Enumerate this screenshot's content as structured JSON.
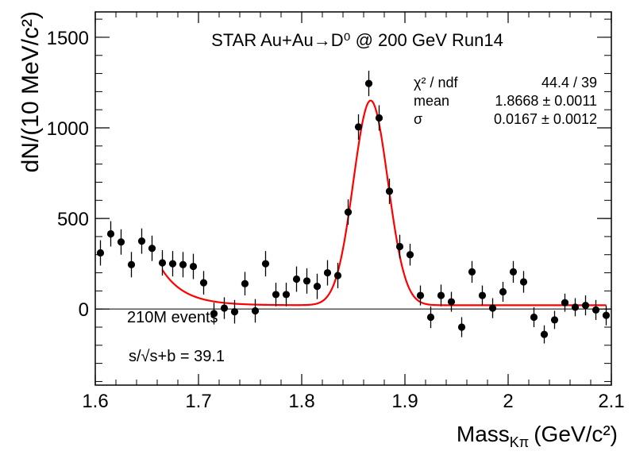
{
  "chart_data": {
    "type": "scatter",
    "title": "STAR Au+Au→D⁰ @ 200 GeV Run14",
    "xlabel": "Mass",
    "xlabel_sub": "Kπ",
    "xlabel_unit": "(GeV/c²)",
    "ylabel": "dN/(10 MeV/c²)",
    "xlim": [
      1.6,
      2.1
    ],
    "ylim": [
      -420,
      1640
    ],
    "xticks": [
      1.6,
      1.7,
      1.8,
      1.9,
      2.0,
      2.1
    ],
    "xtick_labels": [
      "1.6",
      "1.7",
      "1.8",
      "1.9",
      "2",
      "2.1"
    ],
    "yticks": [
      0,
      500,
      1000,
      1500
    ],
    "ytick_labels": [
      "0",
      "500",
      "1000",
      "1500"
    ],
    "zero_line": true,
    "annotations": {
      "events": "210M events",
      "significance": "s/√s+b = 39.1"
    },
    "fit_stats": [
      {
        "label": "χ² / ndf",
        "value": "44.4 / 39"
      },
      {
        "label": "mean",
        "value": "1.8668 ± 0.0011"
      },
      {
        "label": "σ",
        "value": "0.0167 ± 0.0012"
      }
    ],
    "series": [
      {
        "marker": "circle",
        "color": "#000000",
        "x": [
          1.605,
          1.615,
          1.625,
          1.635,
          1.645,
          1.655,
          1.665,
          1.675,
          1.685,
          1.695,
          1.705,
          1.715,
          1.725,
          1.735,
          1.745,
          1.755,
          1.765,
          1.775,
          1.785,
          1.795,
          1.805,
          1.815,
          1.825,
          1.835,
          1.845,
          1.855,
          1.865,
          1.875,
          1.885,
          1.895,
          1.905,
          1.915,
          1.925,
          1.935,
          1.945,
          1.955,
          1.965,
          1.975,
          1.985,
          1.995,
          2.005,
          2.015,
          2.025,
          2.035,
          2.045,
          2.055,
          2.065,
          2.075,
          2.085,
          2.095
        ],
        "y": [
          310,
          415,
          370,
          245,
          375,
          335,
          255,
          250,
          245,
          235,
          145,
          -25,
          5,
          -15,
          140,
          -10,
          250,
          80,
          80,
          165,
          155,
          125,
          200,
          185,
          535,
          1005,
          1245,
          1055,
          650,
          345,
          300,
          75,
          -45,
          75,
          40,
          -100,
          205,
          75,
          5,
          95,
          205,
          150,
          -45,
          -140,
          -60,
          35,
          10,
          20,
          -5,
          -35
        ],
        "yerr": [
          70,
          70,
          70,
          70,
          70,
          70,
          70,
          70,
          70,
          70,
          65,
          60,
          60,
          65,
          65,
          65,
          70,
          65,
          65,
          70,
          70,
          70,
          70,
          70,
          70,
          70,
          70,
          70,
          70,
          65,
          60,
          55,
          60,
          60,
          55,
          55,
          60,
          55,
          55,
          55,
          60,
          60,
          55,
          50,
          50,
          50,
          50,
          55,
          55,
          55
        ]
      }
    ],
    "fit": {
      "color": "#ff0000",
      "x_range": [
        1.665,
        2.095
      ],
      "gauss_mean": 1.8668,
      "gauss_sigma": 0.0167,
      "gauss_amp": 1130,
      "bg_a": 195,
      "bg_b": 4.5,
      "bg_c": 21
    }
  }
}
